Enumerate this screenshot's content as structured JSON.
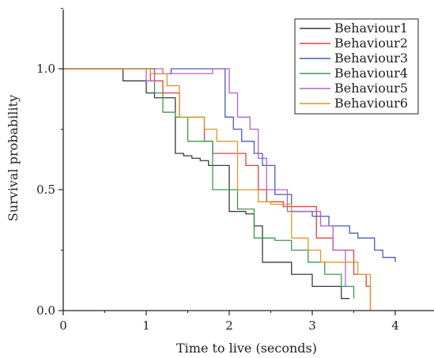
{
  "chart_data": {
    "type": "line",
    "step": true,
    "xlabel": "Time to live (seconds)",
    "ylabel": "Survival probability",
    "xlim": [
      0,
      4.5
    ],
    "ylim": [
      0,
      1.27
    ],
    "xticks": [
      0,
      1,
      2,
      3,
      4
    ],
    "xtick_labels": [
      "0",
      "1",
      "2",
      "3",
      "4"
    ],
    "yticks": [
      0,
      0.5,
      1.0
    ],
    "ytick_labels": [
      "0.0",
      "0.5",
      "1.0"
    ],
    "grid": false,
    "legend_position": "top-right",
    "series": [
      {
        "name": "Behaviour1",
        "color": "#3a3a3a",
        "x": [
          0,
          0.72,
          0.85,
          1.0,
          1.1,
          1.35,
          1.45,
          1.55,
          1.65,
          1.75,
          2.0,
          2.2,
          2.3,
          2.4,
          2.6,
          2.75,
          3.0,
          3.35,
          3.45
        ],
        "y": [
          1.0,
          0.95,
          0.95,
          0.9,
          0.88,
          0.65,
          0.64,
          0.63,
          0.62,
          0.6,
          0.41,
          0.4,
          0.35,
          0.2,
          0.2,
          0.15,
          0.1,
          0.05,
          0.05
        ]
      },
      {
        "name": "Behaviour2",
        "color": "#e04040",
        "x": [
          0,
          1.05,
          1.2,
          1.4,
          1.7,
          1.8,
          2.1,
          2.2,
          2.35,
          2.45,
          2.65,
          3.05,
          3.25,
          3.5,
          3.65,
          3.7
        ],
        "y": [
          1.0,
          0.95,
          0.9,
          0.8,
          0.7,
          0.65,
          0.65,
          0.6,
          0.5,
          0.45,
          0.43,
          0.3,
          0.25,
          0.15,
          0.1,
          0.0
        ]
      },
      {
        "name": "Behaviour3",
        "color": "#4a5ab8",
        "x": [
          0,
          1.1,
          1.3,
          1.95,
          2.05,
          2.15,
          2.3,
          2.4,
          2.55,
          2.75,
          3.0,
          3.2,
          3.45,
          3.55,
          3.75,
          3.85,
          4.0
        ],
        "y": [
          1.0,
          0.98,
          1.0,
          0.8,
          0.75,
          0.7,
          0.65,
          0.6,
          0.48,
          0.41,
          0.39,
          0.35,
          0.32,
          0.3,
          0.25,
          0.22,
          0.2
        ]
      },
      {
        "name": "Behaviour4",
        "color": "#3a9a4a",
        "x": [
          0,
          1.1,
          1.2,
          1.35,
          1.5,
          1.8,
          2.1,
          2.3,
          2.55,
          2.75,
          2.95,
          3.15,
          3.35,
          3.5
        ],
        "y": [
          1.0,
          0.9,
          0.82,
          0.8,
          0.7,
          0.5,
          0.42,
          0.3,
          0.29,
          0.25,
          0.2,
          0.15,
          0.1,
          0.05
        ]
      },
      {
        "name": "Behaviour5",
        "color": "#b060d0",
        "x": [
          0,
          1.0,
          1.1,
          1.2,
          1.8,
          2.0,
          2.1,
          2.25,
          2.35,
          2.45,
          2.7,
          3.1,
          3.25,
          3.4
        ],
        "y": [
          1.0,
          0.95,
          1.0,
          0.98,
          1.0,
          0.9,
          0.8,
          0.75,
          0.63,
          0.5,
          0.41,
          0.35,
          0.25,
          0.1
        ]
      },
      {
        "name": "Behaviour6",
        "color": "#d89a2a",
        "x": [
          0,
          1.05,
          1.25,
          1.4,
          1.7,
          1.85,
          2.1,
          2.35,
          2.5,
          2.75,
          2.95,
          3.1,
          3.35,
          3.55,
          3.7
        ],
        "y": [
          1.0,
          0.98,
          0.93,
          0.8,
          0.75,
          0.7,
          0.5,
          0.45,
          0.44,
          0.3,
          0.25,
          0.2,
          0.2,
          0.15,
          0.0
        ]
      }
    ]
  }
}
